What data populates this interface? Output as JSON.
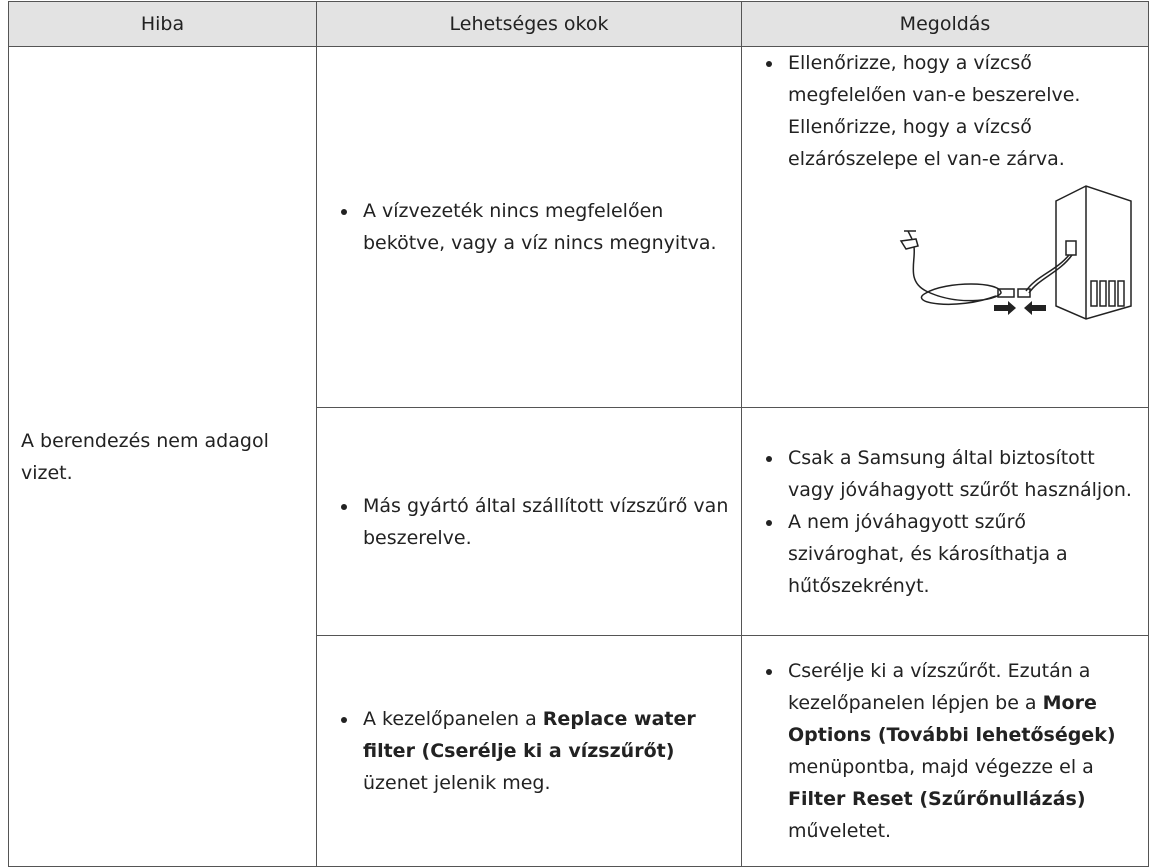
{
  "table": {
    "header": [
      "Hiba",
      "Lehetséges okok",
      "Megoldás"
    ],
    "problem": "A berendezés nem adagol vizet.",
    "rows": [
      {
        "cause": [
          {
            "text": "A vízvezeték nincs megfelelően bekötve, vagy a víz nincs megnyitva."
          }
        ],
        "solution": [
          [
            {
              "text": "Ellenőrizze, hogy a vízcső megfelelően van-e beszerelve. Ellenőrizze, hogy a vízcső elzárószelepe el van-e zárva."
            }
          ]
        ]
      },
      {
        "cause": [
          {
            "text": "Más gyártó által szállított vízszűrő van beszerelve."
          }
        ],
        "solution": [
          [
            {
              "text": "Csak a Samsung által biztosított vagy jóváhagyott szűrőt használjon."
            }
          ],
          [
            {
              "text": "A nem jóváhagyott szűrő szivároghat, és károsíthatja a hűtőszekrényt."
            }
          ]
        ]
      },
      {
        "cause": [
          {
            "text": "A kezelőpanelen a"
          },
          {
            "text": "Replace water filter (Cserélje ki a vízszűrőt)",
            "bold": true
          },
          {
            "text": "üzenet jelenik meg."
          }
        ],
        "solution": [
          [
            {
              "text": "Cserélje ki a vízszűrőt. Ezután a kezelőpanelen lépjen be a"
            },
            {
              "text": "More Options (További lehetőségek)",
              "bold": true
            },
            {
              "text": "menüpontba, majd végezze el a"
            },
            {
              "text": "Filter Reset (Szűrőnullázás)",
              "bold": true
            },
            {
              "text": "műveletet."
            }
          ]
        ]
      }
    ]
  }
}
